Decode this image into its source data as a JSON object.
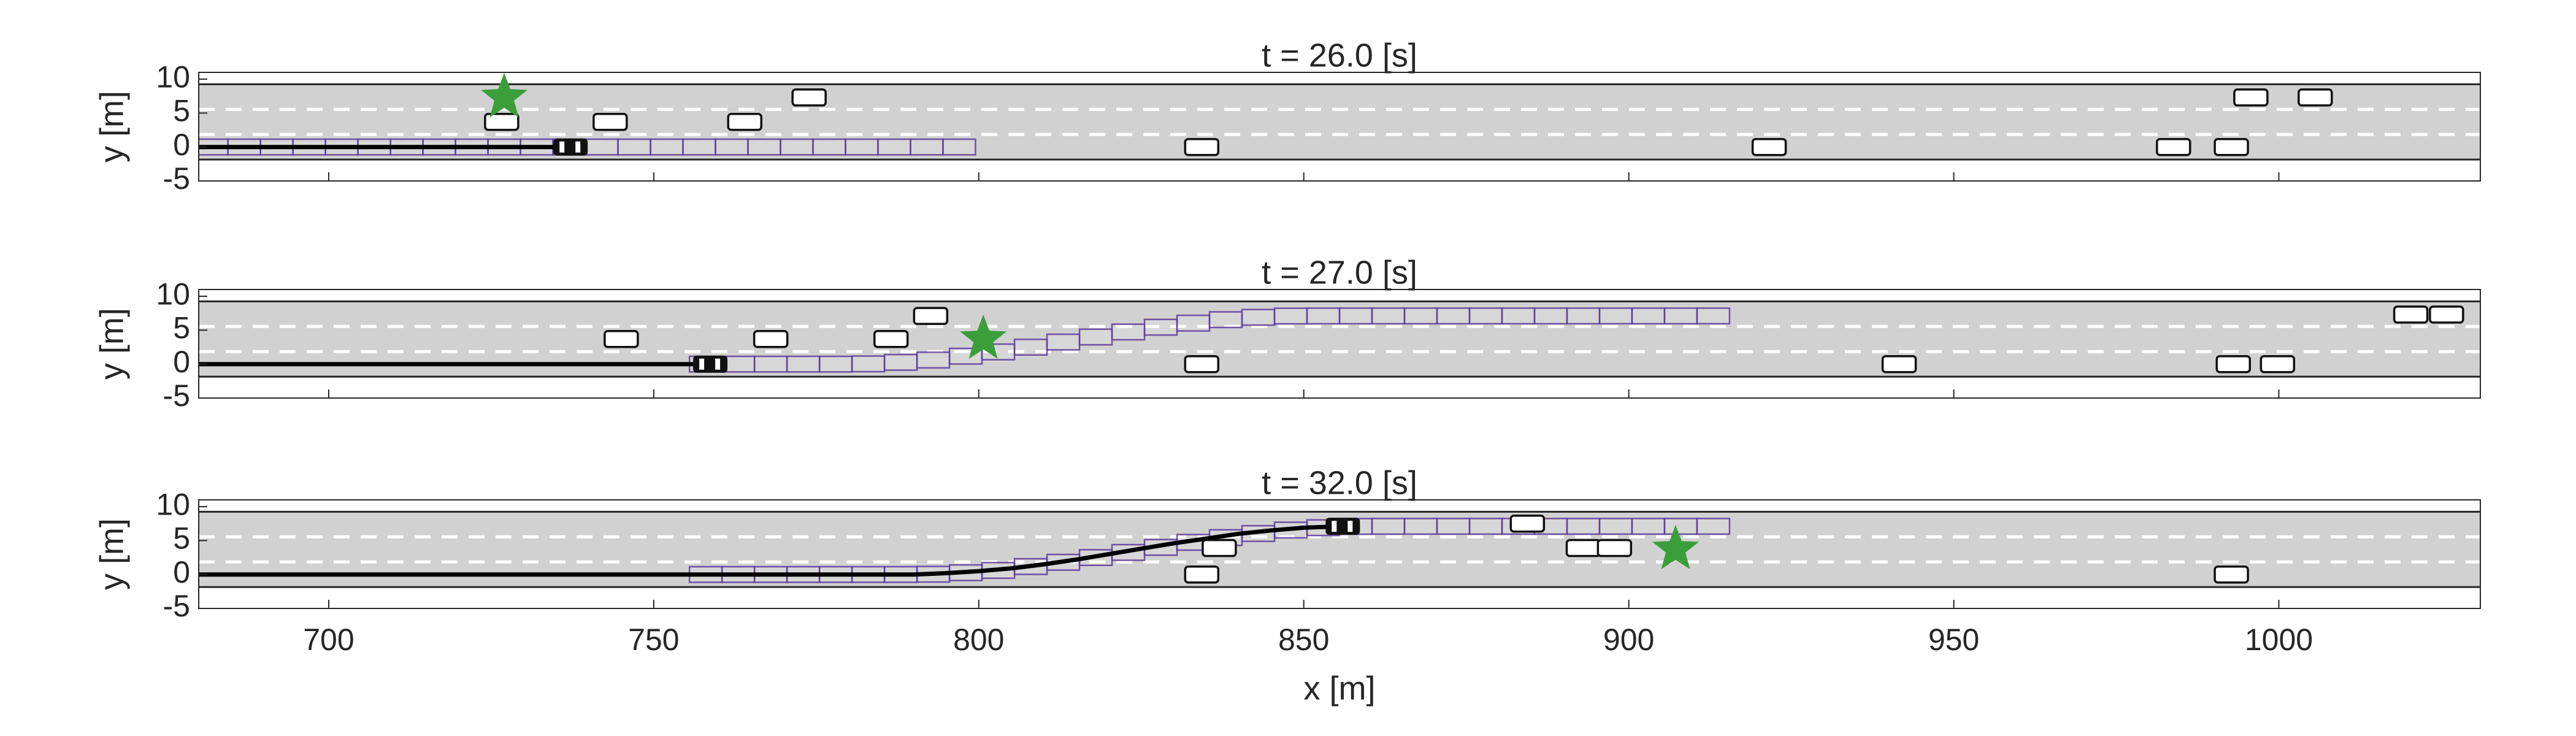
{
  "chart_data": [
    {
      "type": "traffic",
      "title": "t = 26.0 [s]",
      "ylabel": "y [m]",
      "xlim": [
        680,
        1031
      ],
      "ylim": [
        -5,
        11
      ],
      "xticks": [
        700,
        750,
        800,
        850,
        900,
        950,
        1000
      ],
      "yticks": [
        -5,
        0,
        5,
        10
      ],
      "road_color": "#d1d1d1",
      "lanes": {
        "edges": [
          -1.85,
          9.25
        ],
        "markings": [
          1.85,
          5.55
        ]
      },
      "vehicles": {
        "x": [
          726.6,
          743.3,
          764,
          773.9,
          834.3,
          921.6,
          983.8,
          992.7,
          995.7,
          1005.6
        ],
        "y": [
          3.7,
          3.7,
          3.7,
          7.3,
          0,
          0,
          0,
          0,
          7.3,
          7.3
        ]
      },
      "ego": {
        "x": 737.2,
        "y": 0
      },
      "goal": {
        "x": 727,
        "y": 7.3,
        "color": "#3a9e3a"
      },
      "trajectory": {
        "x": [
          680,
          737
        ],
        "y": [
          0,
          0
        ],
        "color": "#000000"
      },
      "plan": {
        "color": "#5b3b9a",
        "x": [
          682,
          687,
          692,
          697,
          702,
          707,
          712,
          717,
          722,
          727,
          732,
          737,
          742,
          747,
          752,
          757,
          762,
          767,
          772,
          777,
          782,
          787,
          792,
          797
        ],
        "y": [
          0,
          0,
          0,
          0,
          0,
          0,
          0,
          0,
          0,
          0,
          0,
          0,
          0,
          0,
          0,
          0,
          0,
          0,
          0,
          0,
          0,
          0,
          0,
          0
        ]
      }
    },
    {
      "type": "traffic",
      "title": "t = 27.0 [s]",
      "ylabel": "y [m]",
      "xlim": [
        680,
        1031
      ],
      "ylim": [
        -5,
        11
      ],
      "xticks": [
        700,
        750,
        800,
        850,
        900,
        950,
        1000
      ],
      "yticks": [
        -5,
        0,
        5,
        10
      ],
      "road_color": "#d1d1d1",
      "lanes": {
        "edges": [
          -1.85,
          9.25
        ],
        "markings": [
          1.85,
          5.55
        ]
      },
      "vehicles": {
        "x": [
          745,
          768,
          786.5,
          792.6,
          834.3,
          941.6,
          993,
          999.8,
          1020.3,
          1025.8
        ],
        "y": [
          3.7,
          3.7,
          3.7,
          7.1,
          0,
          0,
          0,
          0,
          7.3,
          7.3
        ]
      },
      "ego": {
        "x": 758.7,
        "y": 0
      },
      "goal": {
        "x": 800.7,
        "y": 3.7,
        "color": "#3a9e3a"
      },
      "trajectory": {
        "x": [
          680,
          758
        ],
        "y": [
          0,
          0
        ],
        "color": "#000000"
      },
      "plan": {
        "color": "#5b3b9a",
        "x": [
          758,
          763,
          768,
          773,
          778,
          783,
          788,
          793,
          798,
          803,
          808,
          813,
          818,
          823,
          828,
          833,
          838,
          843,
          848,
          853,
          858,
          863,
          868,
          873,
          878,
          883,
          888,
          893,
          898,
          903,
          908,
          913
        ],
        "y": [
          0,
          0,
          0,
          0,
          0,
          0.04,
          0.26,
          0.6,
          1.17,
          1.8,
          2.5,
          3.25,
          4.0,
          4.74,
          5.44,
          6.04,
          6.55,
          6.9,
          7.09,
          7.1,
          7.1,
          7.1,
          7.1,
          7.1,
          7.1,
          7.1,
          7.1,
          7.1,
          7.1,
          7.1,
          7.1,
          7.1
        ]
      }
    },
    {
      "type": "traffic",
      "title": "t = 32.0 [s]",
      "ylabel": "y [m]",
      "xlabel": "x [m]",
      "xlim": [
        680,
        1031
      ],
      "ylim": [
        -5,
        11
      ],
      "xticks": [
        700,
        750,
        800,
        850,
        900,
        950,
        1000
      ],
      "yticks": [
        -5,
        0,
        5,
        10
      ],
      "road_color": "#d1d1d1",
      "lanes": {
        "edges": [
          -1.85,
          9.25
        ],
        "markings": [
          1.85,
          5.55
        ]
      },
      "vehicles": {
        "x": [
          834.3,
          837,
          884.4,
          893,
          897.8,
          992.7
        ],
        "y": [
          0,
          3.9,
          7.5,
          3.9,
          3.9,
          0
        ]
      },
      "ego": {
        "x": 856,
        "y": 7.1
      },
      "goal": {
        "x": 907.2,
        "y": 3.7,
        "color": "#3a9e3a"
      },
      "trajectory": {
        "x": [
          680,
          760,
          790,
          795,
          800,
          805,
          810,
          815,
          820,
          825,
          830,
          835,
          840,
          845,
          850,
          856
        ],
        "y": [
          0,
          0,
          0,
          0.2,
          0.5,
          0.9,
          1.5,
          2.2,
          3.0,
          3.8,
          4.6,
          5.3,
          6.0,
          6.5,
          6.9,
          7.1
        ],
        "color": "#000000"
      },
      "plan": {
        "color": "#5b3b9a",
        "x": [
          758,
          763,
          768,
          773,
          778,
          783,
          788,
          793,
          798,
          803,
          808,
          813,
          818,
          823,
          828,
          833,
          838,
          843,
          848,
          853,
          858,
          863,
          868,
          873,
          878,
          883,
          888,
          893,
          898,
          903,
          908,
          913
        ],
        "y": [
          0,
          0,
          0,
          0,
          0,
          0,
          0,
          0.04,
          0.26,
          0.6,
          1.17,
          1.8,
          2.5,
          3.25,
          4.0,
          4.74,
          5.44,
          6.04,
          6.55,
          6.9,
          7.09,
          7.1,
          7.1,
          7.1,
          7.1,
          7.1,
          7.1,
          7.1,
          7.1,
          7.1,
          7.1,
          7.1
        ]
      }
    }
  ]
}
